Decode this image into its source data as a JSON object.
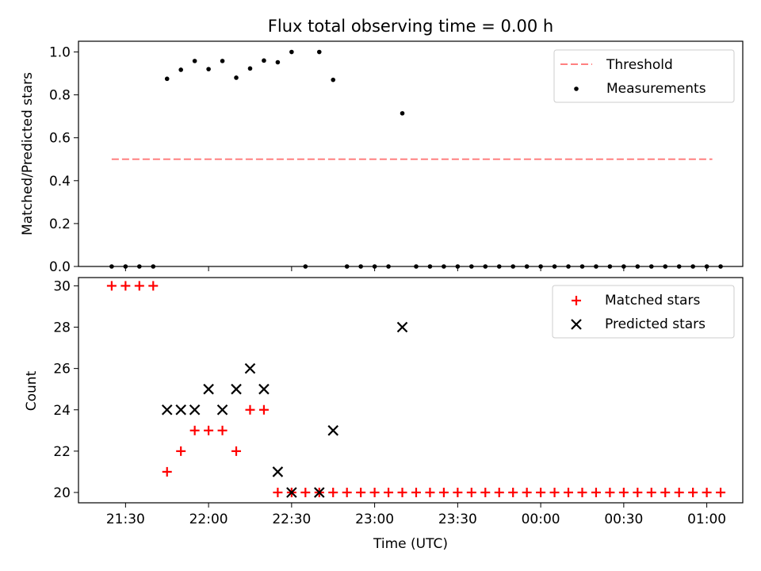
{
  "figure": {
    "title": "Flux total observing time = 0.00 h",
    "xlabel": "Time (UTC)"
  },
  "colors": {
    "threshold": "#ff8080",
    "measurement": "#000000",
    "matched": "#ff0000",
    "predicted": "#000000"
  },
  "chart_data": [
    {
      "type": "scatter",
      "ylabel": "Matched/Predicted stars",
      "xlim": [
        "21:13",
        "01:13"
      ],
      "ylim": [
        0,
        1.05
      ],
      "yticks": [
        "0.0",
        "0.2",
        "0.4",
        "0.6",
        "0.8",
        "1.0"
      ],
      "xticks": [
        "21:30",
        "22:00",
        "22:30",
        "23:00",
        "23:30",
        "00:00",
        "00:30",
        "01:00"
      ],
      "legend_position": "top-right",
      "threshold": {
        "name": "Threshold",
        "value": 0.5,
        "x_range": [
          "21:25",
          "01:02"
        ],
        "style": "dashed"
      },
      "series": [
        {
          "name": "Measurements",
          "marker": "dot",
          "x": [
            "21:25",
            "21:30",
            "21:35",
            "21:40",
            "21:45",
            "21:50",
            "21:55",
            "22:00",
            "22:05",
            "22:10",
            "22:15",
            "22:20",
            "22:25",
            "22:30",
            "22:35",
            "22:40",
            "22:45",
            "22:50",
            "22:55",
            "23:00",
            "23:05",
            "23:10",
            "23:15",
            "23:20",
            "23:25",
            "23:30",
            "23:35",
            "23:40",
            "23:45",
            "23:50",
            "23:55",
            "00:00",
            "00:05",
            "00:10",
            "00:15",
            "00:20",
            "00:25",
            "00:30",
            "00:35",
            "00:40",
            "00:45",
            "00:50",
            "00:55",
            "01:00",
            "01:05"
          ],
          "y": [
            0,
            0,
            0,
            0,
            0.875,
            0.917,
            0.958,
            0.92,
            0.958,
            0.88,
            0.923,
            0.96,
            0.952,
            1.0,
            0,
            1.0,
            0.87,
            0,
            0,
            0,
            0,
            0.714,
            0,
            0,
            0,
            0,
            0,
            0,
            0,
            0,
            0,
            0,
            0,
            0,
            0,
            0,
            0,
            0,
            0,
            0,
            0,
            0,
            0,
            0,
            0
          ]
        }
      ]
    },
    {
      "type": "scatter",
      "ylabel": "Count",
      "xlim": [
        "21:13",
        "01:13"
      ],
      "ylim": [
        19.5,
        30.4
      ],
      "yticks": [
        "20",
        "22",
        "24",
        "26",
        "28",
        "30"
      ],
      "xticks": [
        "21:30",
        "22:00",
        "22:30",
        "23:00",
        "23:30",
        "00:00",
        "00:30",
        "01:00"
      ],
      "legend_position": "top-right",
      "series": [
        {
          "name": "Matched stars",
          "marker": "plus",
          "x": [
            "21:25",
            "21:30",
            "21:35",
            "21:40",
            "21:45",
            "21:50",
            "21:55",
            "22:00",
            "22:05",
            "22:10",
            "22:15",
            "22:20",
            "22:25",
            "22:30",
            "22:35",
            "22:40",
            "22:45",
            "22:50",
            "22:55",
            "23:00",
            "23:05",
            "23:10",
            "23:15",
            "23:20",
            "23:25",
            "23:30",
            "23:35",
            "23:40",
            "23:45",
            "23:50",
            "23:55",
            "00:00",
            "00:05",
            "00:10",
            "00:15",
            "00:20",
            "00:25",
            "00:30",
            "00:35",
            "00:40",
            "00:45",
            "00:50",
            "00:55",
            "01:00",
            "01:05"
          ],
          "y": [
            30,
            30,
            30,
            30,
            21,
            22,
            23,
            23,
            23,
            22,
            24,
            24,
            20,
            20,
            20,
            20,
            20,
            20,
            20,
            20,
            20,
            20,
            20,
            20,
            20,
            20,
            20,
            20,
            20,
            20,
            20,
            20,
            20,
            20,
            20,
            20,
            20,
            20,
            20,
            20,
            20,
            20,
            20,
            20,
            20
          ]
        },
        {
          "name": "Predicted stars",
          "marker": "x",
          "x": [
            "21:45",
            "21:50",
            "21:55",
            "22:00",
            "22:05",
            "22:10",
            "22:15",
            "22:20",
            "22:25",
            "22:30",
            "22:40",
            "22:45",
            "23:10"
          ],
          "y": [
            24,
            24,
            24,
            25,
            24,
            25,
            26,
            25,
            21,
            20,
            20,
            23,
            28
          ]
        }
      ]
    }
  ]
}
